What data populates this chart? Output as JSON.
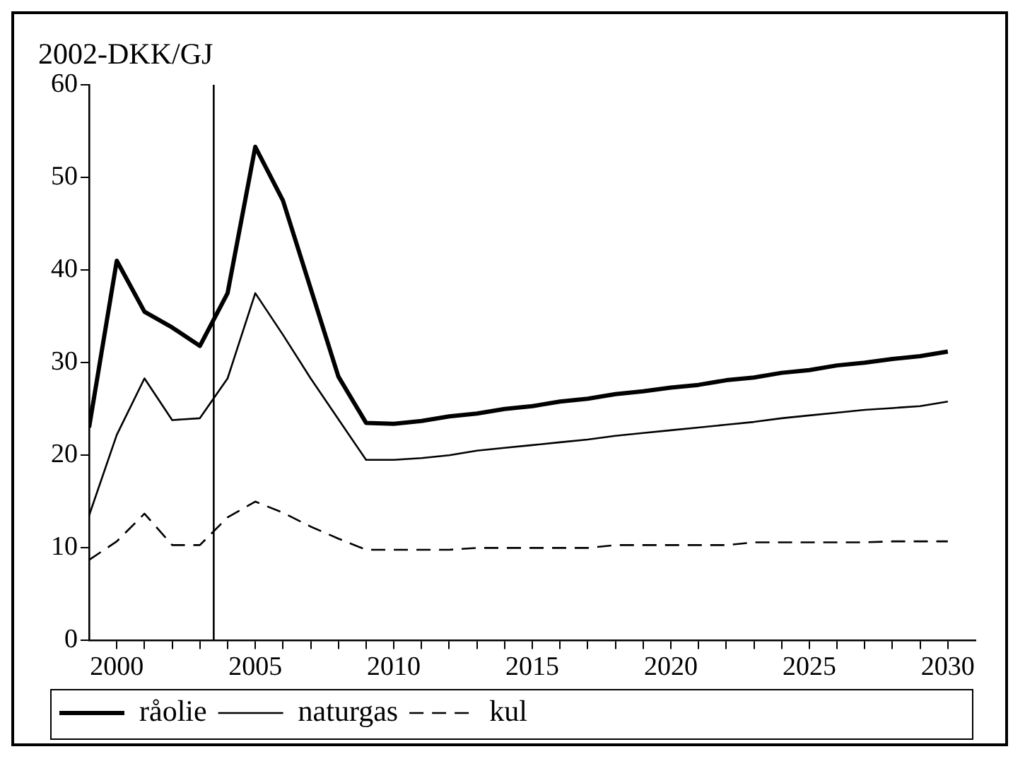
{
  "chart_data": {
    "type": "line",
    "ylabel": "2002-DKK/GJ",
    "x": [
      1999,
      2000,
      2001,
      2002,
      2003,
      2004,
      2005,
      2006,
      2007,
      2008,
      2009,
      2010,
      2011,
      2012,
      2013,
      2014,
      2015,
      2016,
      2017,
      2018,
      2019,
      2020,
      2021,
      2022,
      2023,
      2024,
      2025,
      2026,
      2027,
      2028,
      2029,
      2030
    ],
    "series": [
      {
        "name": "råolie",
        "color": "#000000",
        "line_style": "solid",
        "values": [
          23,
          41,
          35.5,
          33.8,
          31.8,
          37.5,
          53.3,
          47.5,
          38,
          28.5,
          23.5,
          23.4,
          23.7,
          24.2,
          24.5,
          25,
          25.3,
          25.8,
          26.1,
          26.6,
          26.9,
          27.3,
          27.6,
          28.1,
          28.4,
          28.9,
          29.2,
          29.7,
          30,
          30.4,
          30.7,
          31.2
        ]
      },
      {
        "name": "naturgas",
        "color": "#000000",
        "line_style": "solid",
        "values": [
          13.5,
          22.2,
          28.3,
          23.8,
          24,
          28.3,
          37.5,
          33,
          28.3,
          23.9,
          19.5,
          19.5,
          19.7,
          20,
          20.5,
          20.8,
          21.1,
          21.4,
          21.7,
          22.1,
          22.4,
          22.7,
          23,
          23.3,
          23.6,
          24,
          24.3,
          24.6,
          24.9,
          25.1,
          25.3,
          25.8
        ]
      },
      {
        "name": "kul",
        "color": "#000000",
        "line_style": "dashed",
        "values": [
          8.7,
          10.7,
          13.7,
          10.3,
          10.3,
          13.3,
          15,
          13.8,
          12.3,
          11,
          9.8,
          9.8,
          9.8,
          9.8,
          10,
          10,
          10,
          10,
          10,
          10.3,
          10.3,
          10.3,
          10.3,
          10.3,
          10.6,
          10.6,
          10.6,
          10.6,
          10.6,
          10.7,
          10.7,
          10.7
        ]
      }
    ],
    "xlim": [
      1999,
      2031
    ],
    "xticks": [
      2000,
      {
        "value": 2001,
        "label": null
      },
      {
        "value": 2002,
        "label": null
      },
      {
        "value": 2003,
        "label": null
      },
      {
        "value": 2004,
        "label": null
      },
      2005,
      {
        "value": 2006,
        "label": null
      },
      {
        "value": 2007,
        "label": null
      },
      {
        "value": 2008,
        "label": null
      },
      {
        "value": 2009,
        "label": null
      },
      2010,
      {
        "value": 2011,
        "label": null
      },
      {
        "value": 2012,
        "label": null
      },
      {
        "value": 2013,
        "label": null
      },
      {
        "value": 2014,
        "label": null
      },
      2015,
      {
        "value": 2016,
        "label": null
      },
      {
        "value": 2017,
        "label": null
      },
      {
        "value": 2018,
        "label": null
      },
      {
        "value": 2019,
        "label": null
      },
      2020,
      {
        "value": 2021,
        "label": null
      },
      {
        "value": 2022,
        "label": null
      },
      {
        "value": 2023,
        "label": null
      },
      {
        "value": 2024,
        "label": null
      },
      2025,
      {
        "value": 2026,
        "label": null
      },
      {
        "value": 2027,
        "label": null
      },
      {
        "value": 2028,
        "label": null
      },
      {
        "value": 2029,
        "label": null
      },
      2030
    ],
    "ylim": [
      0,
      60
    ],
    "yticks": [
      0,
      10,
      20,
      30,
      40,
      50,
      60
    ],
    "ref_lines": [
      {
        "axis": "x",
        "value": 2003.5,
        "color": "#000000"
      }
    ],
    "grid": false,
    "legend": "bottom",
    "marker": "none"
  }
}
